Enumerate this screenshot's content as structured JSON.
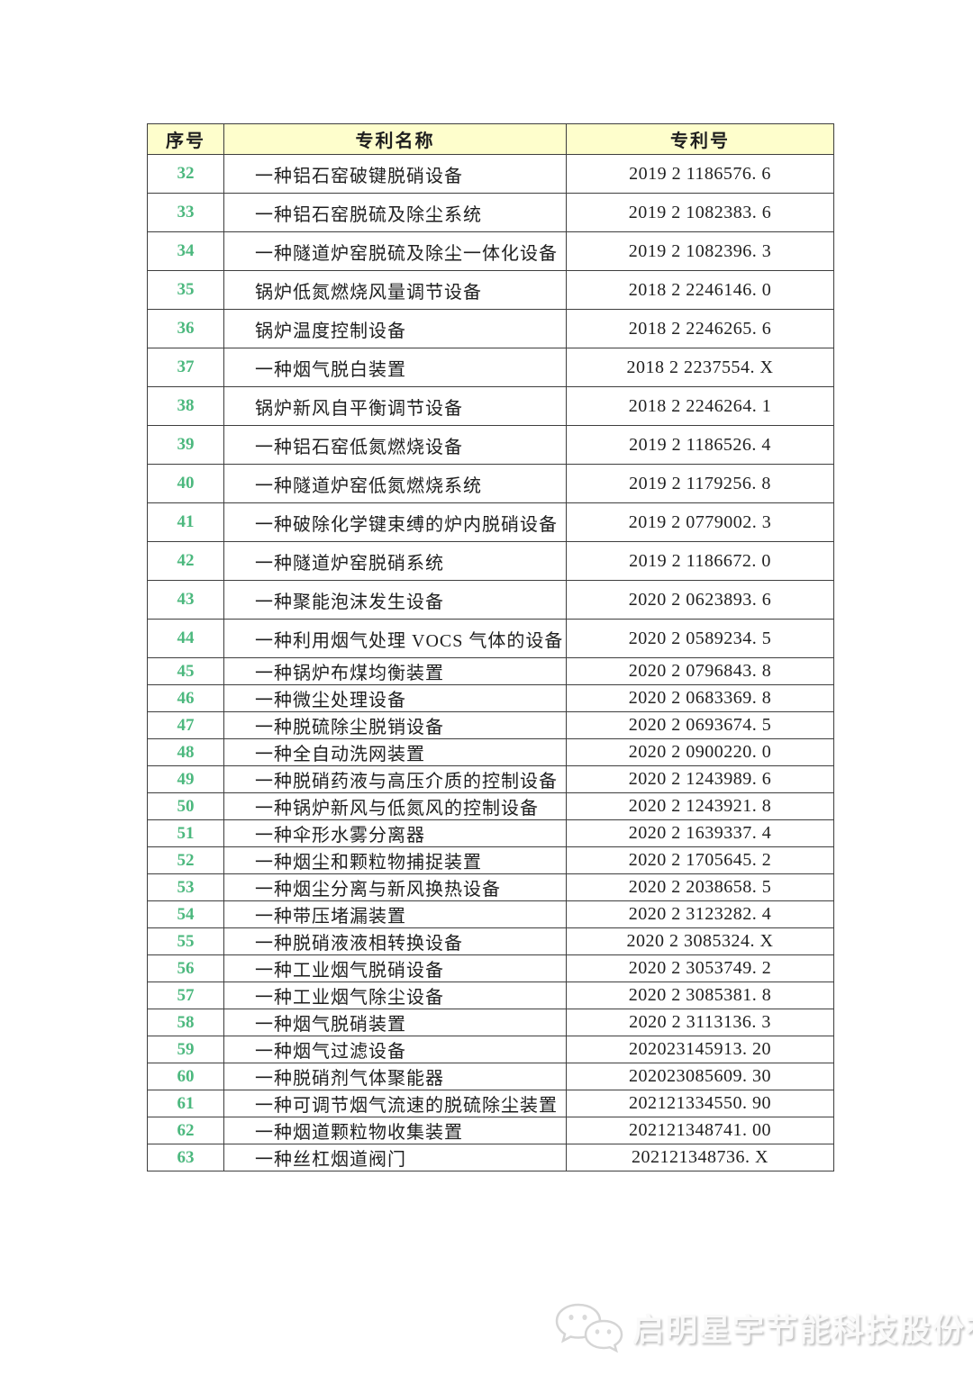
{
  "table": {
    "headers": {
      "serial": "序号",
      "patent_name": "专利名称",
      "patent_number": "专利号"
    },
    "rows": [
      {
        "no": "32",
        "name": "一种铝石窑破键脱硝设备",
        "patent": "2019 2 1186576. 6"
      },
      {
        "no": "33",
        "name": "一种铝石窑脱硫及除尘系统",
        "patent": "2019 2 1082383. 6"
      },
      {
        "no": "34",
        "name": "一种隧道炉窑脱硫及除尘一体化设备",
        "patent": "2019 2 1082396. 3"
      },
      {
        "no": "35",
        "name": "锅炉低氮燃烧风量调节设备",
        "patent": "2018 2 2246146. 0"
      },
      {
        "no": "36",
        "name": "锅炉温度控制设备",
        "patent": "2018 2 2246265. 6"
      },
      {
        "no": "37",
        "name": "一种烟气脱白装置",
        "patent": "2018 2 2237554. X"
      },
      {
        "no": "38",
        "name": "锅炉新风自平衡调节设备",
        "patent": "2018 2 2246264. 1"
      },
      {
        "no": "39",
        "name": "一种铝石窑低氮燃烧设备",
        "patent": "2019 2 1186526. 4"
      },
      {
        "no": "40",
        "name": "一种隧道炉窑低氮燃烧系统",
        "patent": "2019 2 1179256. 8"
      },
      {
        "no": "41",
        "name": "一种破除化学键束缚的炉内脱硝设备",
        "patent": "2019 2 0779002. 3"
      },
      {
        "no": "42",
        "name": "一种隧道炉窑脱硝系统",
        "patent": "2019 2 1186672. 0"
      },
      {
        "no": "43",
        "name": "一种聚能泡沫发生设备",
        "patent": "2020 2 0623893. 6"
      },
      {
        "no": "44",
        "name": "一种利用烟气处理 VOCS 气体的设备",
        "patent": "2020 2 0589234. 5"
      },
      {
        "no": "45",
        "name": "一种锅炉布煤均衡装置",
        "patent": "2020 2 0796843. 8"
      },
      {
        "no": "46",
        "name": "一种微尘处理设备",
        "patent": "2020 2 0683369. 8"
      },
      {
        "no": "47",
        "name": "一种脱硫除尘脱销设备",
        "patent": "2020 2 0693674. 5"
      },
      {
        "no": "48",
        "name": "一种全自动洗网装置",
        "patent": "2020 2 0900220. 0"
      },
      {
        "no": "49",
        "name": "一种脱硝药液与高压介质的控制设备",
        "patent": "2020 2 1243989. 6"
      },
      {
        "no": "50",
        "name": "一种锅炉新风与低氮风的控制设备",
        "patent": "2020 2 1243921. 8"
      },
      {
        "no": "51",
        "name": "一种伞形水雾分离器",
        "patent": "2020 2 1639337. 4"
      },
      {
        "no": "52",
        "name": "一种烟尘和颗粒物捕捉装置",
        "patent": "2020 2 1705645. 2"
      },
      {
        "no": "53",
        "name": "一种烟尘分离与新风换热设备",
        "patent": "2020 2 2038658. 5"
      },
      {
        "no": "54",
        "name": "一种带压堵漏装置",
        "patent": "2020 2 3123282. 4"
      },
      {
        "no": "55",
        "name": "一种脱硝液液相转换设备",
        "patent": "2020 2 3085324. X"
      },
      {
        "no": "56",
        "name": "一种工业烟气脱硝设备",
        "patent": "2020 2 3053749. 2"
      },
      {
        "no": "57",
        "name": "一种工业烟气除尘设备",
        "patent": "2020 2 3085381. 8"
      },
      {
        "no": "58",
        "name": "一种烟气脱硝装置",
        "patent": "2020 2 3113136. 3"
      },
      {
        "no": "59",
        "name": "一种烟气过滤设备",
        "patent": "202023145913. 20"
      },
      {
        "no": "60",
        "name": "一种脱硝剂气体聚能器",
        "patent": "202023085609. 30"
      },
      {
        "no": "61",
        "name": "一种可调节烟气流速的脱硫除尘装置",
        "patent": "202121334550. 90"
      },
      {
        "no": "62",
        "name": "一种烟道颗粒物收集装置",
        "patent": "202121348741. 00"
      },
      {
        "no": "63",
        "name": "一种丝杠烟道阀门",
        "patent": "202121348736. X"
      }
    ],
    "tall_row_count": 13
  },
  "watermark": {
    "company": "启明星宇节能科技股份有限公司",
    "icon": "wechat-icon"
  },
  "colors": {
    "header_bg": "#FEFECC",
    "serial_green": "#4CB87E",
    "border": "#3E3E3E",
    "text": "#1F1F1F",
    "watermark_gray": "#D6D6D6"
  }
}
